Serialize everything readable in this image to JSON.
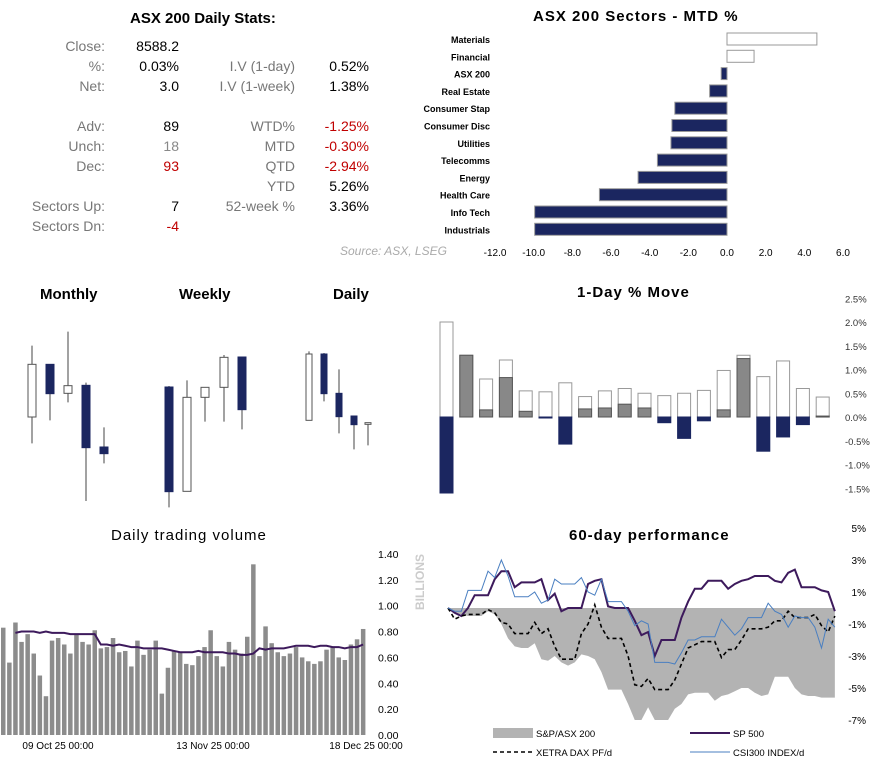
{
  "stats": {
    "title": "ASX 200 Daily Stats:",
    "left": [
      {
        "label": "Close:",
        "value": "8588.2",
        "tone": "normal"
      },
      {
        "label": "%:",
        "value": "0.03%",
        "tone": "normal"
      },
      {
        "label": "Net:",
        "value": "3.0",
        "tone": "normal"
      },
      {
        "label": "Adv:",
        "value": "89",
        "tone": "normal"
      },
      {
        "label": "Unch:",
        "value": "18",
        "tone": "muted"
      },
      {
        "label": "Dec:",
        "value": "93",
        "tone": "red"
      },
      {
        "label": "Sectors Up:",
        "value": "7",
        "tone": "normal"
      },
      {
        "label": "Sectors Dn:",
        "value": "-4",
        "tone": "red"
      }
    ],
    "right": [
      {
        "label": "I.V (1-day)",
        "value": "0.52%",
        "tone": "normal"
      },
      {
        "label": "I.V (1-week)",
        "value": "1.38%",
        "tone": "normal"
      },
      {
        "label": "WTD%",
        "value": "-1.25%",
        "tone": "red"
      },
      {
        "label": "MTD",
        "value": "-0.30%",
        "tone": "red"
      },
      {
        "label": "QTD",
        "value": "-2.94%",
        "tone": "red"
      },
      {
        "label": "YTD",
        "value": "5.26%",
        "tone": "normal"
      },
      {
        "label": "52-week %",
        "value": "3.36%",
        "tone": "normal"
      }
    ],
    "colors": {
      "label": "#777777",
      "negative": "#c00000"
    }
  },
  "source": "Source: ASX, LSEG",
  "chart_data": [
    {
      "type": "bar",
      "orientation": "horizontal",
      "title": "ASX 200 Sectors - MTD %",
      "categories": [
        "Materials",
        "Financial",
        "ASX 200",
        "Real Estate",
        "Consumer Stap",
        "Consumer Disc",
        "Utilities",
        "Telecomms",
        "Energy",
        "Health Care",
        "Info Tech",
        "Industrials"
      ],
      "values": [
        4.65,
        1.4,
        -0.3,
        -0.9,
        -2.7,
        -2.85,
        -2.9,
        -3.6,
        -4.6,
        -6.6,
        -9.95,
        -9.95
      ],
      "xlim": [
        -12,
        6
      ],
      "ticks": [
        "-12.0",
        "-10.0",
        "-8.0",
        "-6.0",
        "-4.0",
        "-2.0",
        "0.0",
        "2.0",
        "4.0",
        "6.0"
      ],
      "colors": {
        "positive": "#ffffff",
        "negative": "#1b2660"
      }
    },
    {
      "type": "candlestick",
      "panels": [
        {
          "title": "Monthly",
          "candles": [
            {
              "open": 57.8,
              "high": 100.6,
              "low": 42,
              "close": 89.4
            },
            {
              "open": 89.4,
              "high": 89.4,
              "low": 55.8,
              "close": 71.8
            },
            {
              "open": 72,
              "high": 109,
              "low": 66.6,
              "close": 76.6
            },
            {
              "open": 76.8,
              "high": 78.4,
              "low": 7.4,
              "close": 39.4
            },
            {
              "open": 39.8,
              "high": 51.6,
              "low": 30,
              "close": 35.8
            }
          ]
        },
        {
          "title": "Weekly",
          "candles": [
            {
              "open": 75.8,
              "high": 76.4,
              "low": 3.6,
              "close": 13
            },
            {
              "open": 13.2,
              "high": 79.8,
              "low": 13.2,
              "close": 69.6
            },
            {
              "open": 69.6,
              "high": 75.6,
              "low": 55,
              "close": 75.6
            },
            {
              "open": 75.6,
              "high": 95,
              "low": 55,
              "close": 93.6
            },
            {
              "open": 93.8,
              "high": 93.8,
              "low": 50.4,
              "close": 62.2
            }
          ]
        },
        {
          "title": "Daily",
          "candles": [
            {
              "open": 55.8,
              "high": 97.2,
              "low": 55.8,
              "close": 95.6
            },
            {
              "open": 95.6,
              "high": 96.2,
              "low": 67.2,
              "close": 71.8
            },
            {
              "open": 72,
              "high": 86.4,
              "low": 48,
              "close": 58
            },
            {
              "open": 58.4,
              "high": 58.4,
              "low": 38.4,
              "close": 53.2
            },
            {
              "open": 53.4,
              "high": 54.4,
              "low": 40.8,
              "close": 54.4
            }
          ]
        }
      ],
      "colors": {
        "up": "#ffffff",
        "down": "#1b2660"
      }
    },
    {
      "type": "bar",
      "title": "1-Day % Move",
      "series": [
        {
          "role": "range",
          "values": [
            2.0,
            1.3,
            0.8,
            1.2,
            0.55,
            0.53,
            0.72,
            0.43,
            0.55,
            0.6,
            0.5,
            0.45,
            0.5,
            0.56,
            0.98,
            1.3,
            0.85,
            1.18,
            0.6,
            0.42
          ]
        },
        {
          "role": "move",
          "values": [
            -1.6,
            1.3,
            0.15,
            0.83,
            0.12,
            -0.02,
            -0.57,
            0.17,
            0.19,
            0.27,
            0.19,
            -0.12,
            -0.45,
            -0.08,
            0.15,
            1.23,
            -0.72,
            -0.42,
            -0.16,
            0.02
          ]
        }
      ],
      "ylim": [
        -1.5,
        2.5
      ],
      "ticks": [
        "2.5%",
        "2.0%",
        "1.5%",
        "1.0%",
        "0.5%",
        "0.0%",
        "-0.5%",
        "-1.0%",
        "-1.5%"
      ],
      "colors": {
        "positive": "#888888",
        "negative": "#1b2660"
      }
    },
    {
      "type": "bar",
      "title": "Daily trading volume",
      "ylabel": "BILLIONS",
      "ylim": [
        0,
        1.4
      ],
      "ticks": [
        "1.40",
        "1.20",
        "1.00",
        "0.80",
        "0.60",
        "0.40",
        "0.20",
        "0.00"
      ],
      "x_tick_labels": [
        "09 Oct 25 00:00",
        "13 Nov 25 00:00",
        "18 Dec 25 00:00"
      ],
      "values": [
        0.83,
        0.56,
        0.87,
        0.72,
        0.78,
        0.63,
        0.46,
        0.3,
        0.73,
        0.75,
        0.7,
        0.63,
        0.78,
        0.72,
        0.7,
        0.81,
        0.67,
        0.68,
        0.75,
        0.64,
        0.65,
        0.53,
        0.73,
        0.62,
        0.66,
        0.73,
        0.32,
        0.52,
        0.65,
        0.64,
        0.55,
        0.54,
        0.61,
        0.68,
        0.81,
        0.61,
        0.53,
        0.72,
        0.66,
        0.63,
        0.76,
        1.32,
        0.61,
        0.84,
        0.71,
        0.64,
        0.61,
        0.63,
        0.68,
        0.6,
        0.57,
        0.55,
        0.57,
        0.66,
        0.68,
        0.6,
        0.58,
        0.7,
        0.74,
        0.82
      ],
      "average": [
        null,
        null,
        0.79,
        0.8,
        0.8,
        0.8,
        0.79,
        0.8,
        0.79,
        0.79,
        0.79,
        0.78,
        0.78,
        0.78,
        0.78,
        0.78,
        0.7,
        0.7,
        0.69,
        0.7,
        0.69,
        0.68,
        0.68,
        0.67,
        0.67,
        0.67,
        0.67,
        0.66,
        0.65,
        0.64,
        0.64,
        0.64,
        0.65,
        0.64,
        0.64,
        0.64,
        0.64,
        0.63,
        0.63,
        0.62,
        0.62,
        0.63,
        0.67,
        0.66,
        0.67,
        0.67,
        0.67,
        0.68,
        0.69,
        0.69,
        0.69,
        0.68,
        0.69,
        0.69,
        0.68,
        0.68,
        0.67,
        0.68,
        0.68,
        0.7
      ],
      "colors": {
        "bars": "#8c8c8c",
        "average": "#3d1a5c"
      }
    },
    {
      "type": "line",
      "title": "60-day performance",
      "ylim": [
        -7,
        5
      ],
      "ticks": [
        "5%",
        "3%",
        "1%",
        "-1%",
        "-3%",
        "-5%",
        "-7%"
      ],
      "legend": "bottom",
      "series": [
        {
          "name": "S&P/ASX 200",
          "style": "area",
          "color": "#b3b3b3",
          "values": [
            0,
            -0.3,
            -0.4,
            -0.5,
            -0.5,
            -0.5,
            -0.2,
            -0.4,
            -1.0,
            -1.9,
            -2.4,
            -2.5,
            -2.5,
            -2.2,
            -3.2,
            -3.3,
            -3.0,
            -3.4,
            -3.6,
            -3.4,
            -2.9,
            -3.0,
            -3.2,
            -4.0,
            -5.1,
            -5.1,
            -5.1,
            -6.0,
            -7.0,
            -7.1,
            -6.2,
            -7.2,
            -7.2,
            -7.2,
            -6.3,
            -6.0,
            -5.4,
            -5.3,
            -5.3,
            -5.3,
            -5.8,
            -5.5,
            -5.4,
            -5.2,
            -5.0,
            -5.0,
            -5.3,
            -5.5,
            -5.4,
            -4.3,
            -4.3,
            -4.3,
            -5.0,
            -5.4,
            -5.5,
            -5.5,
            -5.6,
            -5.6,
            -5.6
          ]
        },
        {
          "name": "SP 500",
          "style": "solid",
          "color": "#3d1a5c",
          "values": [
            0,
            -0.3,
            -0.5,
            0,
            0.8,
            0.8,
            0.8,
            1.8,
            2.3,
            2.3,
            1.3,
            1.6,
            1.6,
            1.6,
            1.8,
            0.5,
            0.9,
            -0.2,
            0,
            0,
            0,
            1.5,
            1.7,
            1.8,
            0.1,
            0,
            0,
            0,
            -0.8,
            -1.7,
            -1.5,
            -3.0,
            -2.0,
            -2.0,
            -2.0,
            -0.6,
            0.4,
            1.2,
            1.2,
            1.7,
            1.7,
            1.7,
            1.2,
            1.5,
            1.7,
            1.8,
            2.0,
            2.0,
            2.0,
            1.7,
            1.6,
            2.2,
            2.4,
            1.3,
            1.3,
            1.3,
            1.1,
            1.0,
            -0.2
          ]
        },
        {
          "name": "XETRA DAX PF/d",
          "style": "dashed",
          "color": "#000000",
          "values": [
            0,
            -0.7,
            -0.5,
            -0.4,
            -0.4,
            -0.4,
            -0.1,
            -0.3,
            -0.9,
            -1.0,
            -1.6,
            -1.6,
            -1.6,
            -0.9,
            -1.6,
            -1.3,
            -2.4,
            -3.2,
            -3.2,
            -3.2,
            -1.6,
            -1.0,
            0.2,
            -1.2,
            -1.9,
            -1.9,
            -1.9,
            -3.0,
            -4.8,
            -4.9,
            -4.4,
            -5.1,
            -5.1,
            -5.1,
            -4.5,
            -3.5,
            -2.5,
            -2.3,
            -2.1,
            -2.1,
            -2.1,
            -3.1,
            -2.6,
            -2.6,
            -2.0,
            -1.3,
            -1.3,
            -1.3,
            -1.2,
            -0.8,
            -0.8,
            -0.2,
            -0.6,
            -0.6,
            -0.6,
            -0.4,
            -1.1,
            -1.5,
            -0.5
          ]
        },
        {
          "name": "CSI300 INDEX/d",
          "style": "thin",
          "color": "#4a7fc1",
          "values": [
            0,
            -0.2,
            -0.2,
            1.1,
            1.1,
            1.1,
            2.3,
            1.9,
            3.0,
            2.0,
            0.7,
            0.7,
            0.7,
            1.0,
            0.3,
            0.5,
            1.8,
            1.5,
            1.5,
            1.5,
            1.9,
            1.0,
            0.8,
            1.8,
            0.4,
            0.4,
            0.4,
            -0.2,
            -1.1,
            -0.8,
            -1.0,
            -3.4,
            -3.4,
            -3.4,
            -3.5,
            -2.8,
            -2.0,
            -2.0,
            -1.8,
            -1.8,
            -1.8,
            -0.7,
            -1.2,
            -1.7,
            -1.3,
            -0.6,
            -0.6,
            -0.6,
            0.3,
            -0.2,
            -0.4,
            -1.2,
            -0.5,
            -0.6,
            -0.6,
            -1.2,
            -2.5,
            -0.7,
            -1.2
          ]
        }
      ]
    }
  ]
}
